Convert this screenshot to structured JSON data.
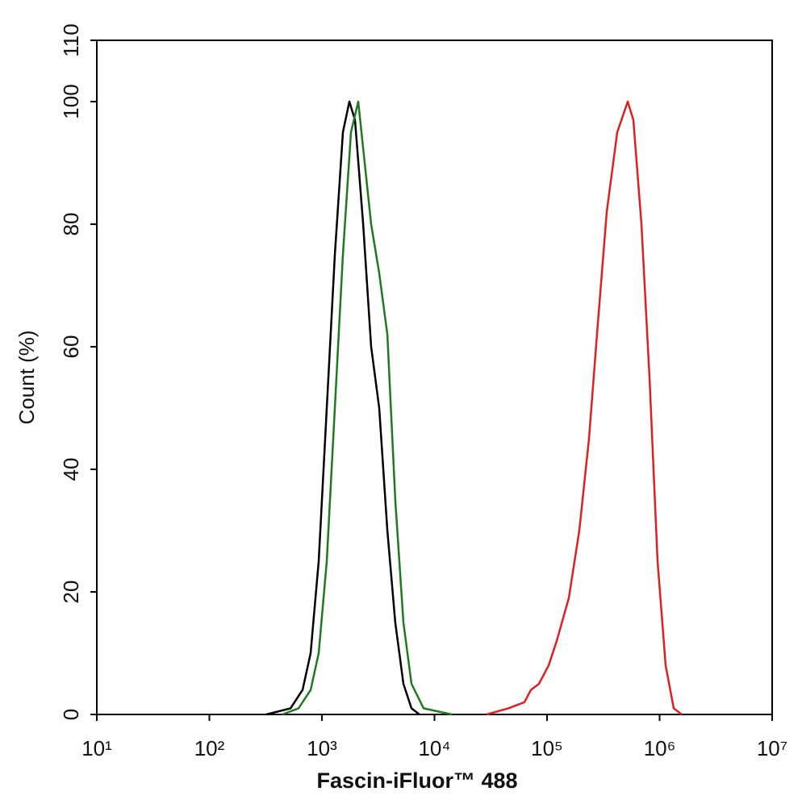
{
  "chart_data": {
    "type": "line",
    "xlabel": "Fascin-iFluor™ 488",
    "ylabel": "Count  (%)",
    "xscale": "log",
    "xlim": [
      10,
      10000000
    ],
    "xticks": [
      {
        "value": 10,
        "label": "10¹"
      },
      {
        "value": 100,
        "label": "10²"
      },
      {
        "value": 1000,
        "label": "10³"
      },
      {
        "value": 10000,
        "label": "10⁴"
      },
      {
        "value": 100000,
        "label": "10⁵"
      },
      {
        "value": 1000000,
        "label": "10⁶"
      },
      {
        "value": 10000000,
        "label": "10⁷"
      }
    ],
    "ylim": [
      0,
      110
    ],
    "yticks": [
      0,
      20,
      40,
      60,
      80,
      100,
      110
    ],
    "series": [
      {
        "color": "#000000",
        "x": [
          320,
          525,
          673,
          794,
          936,
          1104,
          1303,
          1535,
          1754,
          1968,
          2323,
          2735,
          3228,
          3811,
          4487,
          5297,
          6252,
          7362
        ],
        "values": [
          0,
          1,
          4,
          10,
          25,
          50,
          75,
          95,
          100,
          97,
          80,
          60,
          50,
          30,
          15,
          5,
          1,
          0
        ]
      },
      {
        "color": "#1f7a1f",
        "x": [
          445,
          620,
          794,
          936,
          1104,
          1303,
          1535,
          1811,
          2102,
          2399,
          2735,
          3228,
          3811,
          4487,
          5297,
          6252,
          8000,
          14260
        ],
        "values": [
          0,
          1,
          4,
          10,
          25,
          50,
          75,
          95,
          100,
          90,
          80,
          72,
          62,
          35,
          15,
          5,
          1,
          0
        ]
      },
      {
        "color": "#e02020",
        "x": [
          28990,
          45290,
          62960,
          71940,
          84720,
          103300,
          121900,
          156200,
          193600,
          236000,
          278000,
          339000,
          420400,
          521000,
          584800,
          690000,
          813000,
          959000,
          1132000,
          1334000,
          1574000
        ],
        "values": [
          0,
          1,
          2,
          4,
          5,
          8,
          12,
          19,
          30,
          45,
          62,
          82,
          95,
          100,
          97,
          80,
          55,
          25,
          8,
          1,
          0
        ]
      }
    ]
  }
}
